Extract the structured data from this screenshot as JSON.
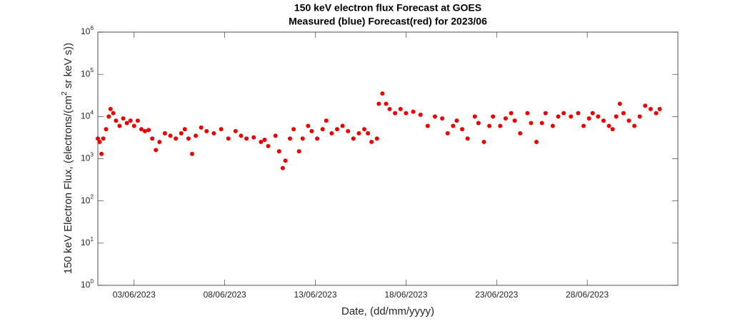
{
  "chart_data": {
    "type": "scatter",
    "title": "150 keV electron flux Forecast at GOES",
    "subtitle": "Measured (blue) Forecast(red) for 2023/06",
    "x_label": "Date, (dd/mm/yyyy)",
    "y_label": "150 keV Electron Flux, (electrons/(cm^2 sr keV s))",
    "color": "#ee0000",
    "log_y": true,
    "xlim": [
      1,
      33
    ],
    "xticks": [
      {
        "value": 3,
        "label": "03/06/2023"
      },
      {
        "value": 8,
        "label": "08/06/2023"
      },
      {
        "value": 13,
        "label": "13/06/2023"
      },
      {
        "value": 18,
        "label": "18/06/2023"
      },
      {
        "value": 23,
        "label": "23/06/2023"
      },
      {
        "value": 28,
        "label": "28/06/2023"
      }
    ],
    "ylim": [
      1,
      1000000
    ],
    "yticks": [
      {
        "value": 1,
        "label": "10^0"
      },
      {
        "value": 10,
        "label": "10^1"
      },
      {
        "value": 100,
        "label": "10^2"
      },
      {
        "value": 1000,
        "label": "10^3"
      },
      {
        "value": 10000,
        "label": "10^4"
      },
      {
        "value": 100000,
        "label": "10^5"
      },
      {
        "value": 1000000,
        "label": "10^6"
      }
    ],
    "x": [
      1.0,
      1.1,
      1.2,
      1.3,
      1.45,
      1.6,
      1.7,
      1.85,
      2.0,
      2.2,
      2.4,
      2.6,
      2.8,
      3.0,
      3.2,
      3.4,
      3.6,
      3.8,
      4.0,
      4.2,
      4.4,
      4.7,
      5.0,
      5.3,
      5.6,
      5.8,
      6.0,
      6.2,
      6.4,
      6.7,
      7.0,
      7.4,
      7.8,
      8.2,
      8.6,
      8.9,
      9.2,
      9.6,
      10.0,
      10.2,
      10.4,
      10.8,
      11.0,
      11.2,
      11.35,
      11.6,
      11.8,
      12.1,
      12.3,
      12.6,
      12.8,
      13.1,
      13.4,
      13.6,
      13.9,
      14.2,
      14.5,
      14.8,
      15.1,
      15.4,
      15.7,
      15.9,
      16.1,
      16.4,
      16.5,
      16.7,
      16.9,
      17.1,
      17.4,
      17.7,
      18.0,
      18.4,
      18.8,
      19.2,
      19.6,
      20.0,
      20.3,
      20.6,
      20.8,
      21.1,
      21.4,
      21.8,
      22.0,
      22.3,
      22.6,
      22.8,
      23.2,
      23.5,
      23.8,
      24.0,
      24.3,
      24.7,
      24.9,
      25.2,
      25.5,
      25.7,
      26.1,
      26.4,
      26.7,
      27.1,
      27.5,
      27.8,
      28.1,
      28.3,
      28.6,
      28.9,
      29.2,
      29.4,
      29.6,
      29.8,
      30.0,
      30.3,
      30.6,
      30.9,
      31.2,
      31.5,
      31.8,
      32.0
    ],
    "values": [
      3000,
      2500,
      1300,
      3000,
      5000,
      10000,
      15000,
      12000,
      8000,
      6000,
      9000,
      7000,
      8000,
      6000,
      8000,
      5000,
      4500,
      4800,
      3000,
      1600,
      2500,
      4000,
      3500,
      3000,
      4000,
      5000,
      3000,
      1300,
      3500,
      5500,
      4500,
      4000,
      5000,
      3000,
      4500,
      3500,
      3000,
      3200,
      2500,
      2800,
      2000,
      3500,
      1500,
      600,
      900,
      3000,
      5000,
      1500,
      3000,
      6000,
      4500,
      3000,
      5000,
      8000,
      4000,
      5000,
      6000,
      4500,
      3000,
      4000,
      5000,
      4000,
      2500,
      3000,
      20000,
      35000,
      20000,
      15000,
      12000,
      15000,
      12000,
      13000,
      11000,
      6000,
      10000,
      9000,
      4000,
      6000,
      8000,
      5000,
      3000,
      10000,
      7000,
      2500,
      6000,
      10000,
      6000,
      9000,
      12000,
      8000,
      4000,
      12000,
      7000,
      2500,
      7000,
      12000,
      6000,
      10000,
      12000,
      10000,
      12000,
      6000,
      9000,
      12000,
      10000,
      8000,
      6000,
      5000,
      10000,
      20000,
      12000,
      8000,
      6000,
      10000,
      18000,
      15000,
      12000,
      15000
    ]
  }
}
